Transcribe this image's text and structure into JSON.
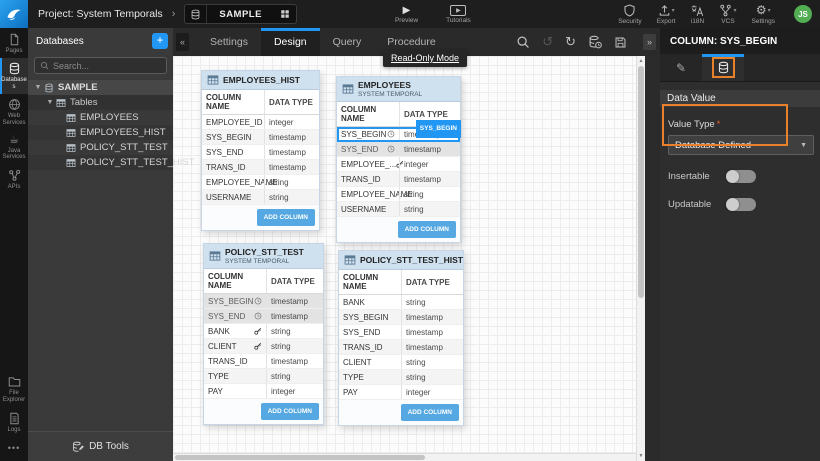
{
  "topbar": {
    "project_label": "Project: System Temporals",
    "sample_tab": "SAMPLE",
    "preview": "Preview",
    "tutorials": "Tutorials",
    "security": "Security",
    "export": "Export",
    "i18n": "i18N",
    "vcs": "VCS",
    "settings": "Settings",
    "avatar_initials": "JS"
  },
  "sidebar": {
    "items": [
      {
        "label": "Pages"
      },
      {
        "label": "Databases"
      },
      {
        "label": "Web Services"
      },
      {
        "label": "Java Services"
      },
      {
        "label": "APIs"
      }
    ],
    "bottom_items": [
      {
        "label": "File Explorer"
      },
      {
        "label": "Logs"
      }
    ],
    "more": "•••"
  },
  "db_panel": {
    "title": "Databases",
    "add_button": "+",
    "search_placeholder": "Search...",
    "db_name": "SAMPLE",
    "tables_label": "Tables",
    "tables": [
      "EMPLOYEES",
      "EMPLOYEES_HIST",
      "POLICY_STT_TEST",
      "POLICY_STT_TEST_HIST"
    ],
    "db_tools": "DB Tools"
  },
  "design_area": {
    "tabs": [
      "Settings",
      "Design",
      "Query",
      "Procedure"
    ],
    "active_tab": "Design",
    "tooltip": "Read-Only Mode",
    "col_headers": [
      "COLUMN NAME",
      "DATA TYPE"
    ],
    "add_column_label": "ADD COLUMN",
    "tables": [
      {
        "name": "EMPLOYEES_HIST",
        "subtitle": "",
        "rows": [
          {
            "name": "EMPLOYEE_ID",
            "type": "integer"
          },
          {
            "name": "SYS_BEGIN",
            "type": "timestamp"
          },
          {
            "name": "SYS_END",
            "type": "timestamp"
          },
          {
            "name": "TRANS_ID",
            "type": "timestamp"
          },
          {
            "name": "EMPLOYEE_NAME",
            "type": "string"
          },
          {
            "name": "USERNAME",
            "type": "string"
          }
        ]
      },
      {
        "name": "EMPLOYEES",
        "subtitle": "SYSTEM TEMPORAL",
        "rows": [
          {
            "name": "SYS_BEGIN",
            "type": "timestamp",
            "icon": "clock",
            "selected": true,
            "badge": "SYS_BEGIN"
          },
          {
            "name": "SYS_END",
            "type": "timestamp",
            "icon": "clock",
            "system": true
          },
          {
            "name": "EMPLOYEE_...",
            "type": "integer",
            "icon": "key"
          },
          {
            "name": "TRANS_ID",
            "type": "timestamp"
          },
          {
            "name": "EMPLOYEE_NAME",
            "type": "string"
          },
          {
            "name": "USERNAME",
            "type": "string"
          }
        ]
      },
      {
        "name": "POLICY_STT_TEST",
        "subtitle": "SYSTEM TEMPORAL",
        "rows": [
          {
            "name": "SYS_BEGIN",
            "type": "timestamp",
            "icon": "clock",
            "system": true
          },
          {
            "name": "SYS_END",
            "type": "timestamp",
            "icon": "clock",
            "system": true
          },
          {
            "name": "BANK",
            "type": "string",
            "icon": "key"
          },
          {
            "name": "CLIENT",
            "type": "string",
            "icon": "key"
          },
          {
            "name": "TRANS_ID",
            "type": "timestamp"
          },
          {
            "name": "TYPE",
            "type": "string"
          },
          {
            "name": "PAY",
            "type": "integer"
          }
        ]
      },
      {
        "name": "POLICY_STT_TEST_HIST",
        "subtitle": "",
        "rows": [
          {
            "name": "BANK",
            "type": "string"
          },
          {
            "name": "SYS_BEGIN",
            "type": "timestamp"
          },
          {
            "name": "SYS_END",
            "type": "timestamp"
          },
          {
            "name": "TRANS_ID",
            "type": "timestamp"
          },
          {
            "name": "CLIENT",
            "type": "string"
          },
          {
            "name": "TYPE",
            "type": "string"
          },
          {
            "name": "PAY",
            "type": "integer"
          }
        ]
      }
    ]
  },
  "right_panel": {
    "title": "COLUMN: SYS_BEGIN",
    "section_title": "Data Value",
    "value_type_label": "Value Type",
    "required_mark": "*",
    "value_type_value": "Database Defined",
    "insertable_label": "Insertable",
    "updatable_label": "Updatable"
  },
  "colors": {
    "accent_blue": "#2196f3",
    "highlight_orange": "#e8822a",
    "add_column_blue": "#55a8e1",
    "avatar_green": "#53ae53",
    "card_header_blue": "#cfe0ee"
  }
}
